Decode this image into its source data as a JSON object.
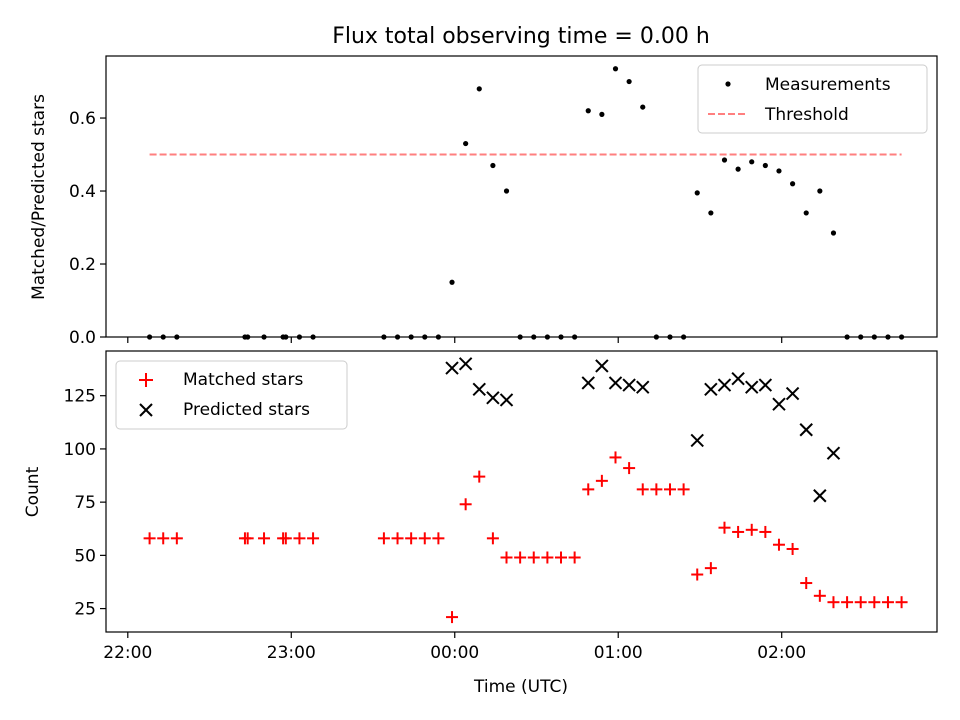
{
  "chart_data": [
    {
      "type": "scatter",
      "title": "Flux total observing time = 0.00 h",
      "xlabel": "",
      "ylabel": "Matched/Predicted stars",
      "xlim": [
        "21:52",
        "02:57"
      ],
      "ylim": [
        0,
        0.77
      ],
      "yticks": [
        0.0,
        0.2,
        0.4,
        0.6
      ],
      "ytick_labels": [
        "0.0",
        "0.2",
        "0.4",
        "0.6"
      ],
      "legend_position": "top-right",
      "series": [
        {
          "name": "Measurements",
          "marker": "dot",
          "color": "#000000",
          "points": [
            [
              "22:08",
              0
            ],
            [
              "22:13",
              0
            ],
            [
              "22:18",
              0
            ],
            [
              "22:43",
              0
            ],
            [
              "22:44",
              0
            ],
            [
              "22:50",
              0
            ],
            [
              "22:57",
              0
            ],
            [
              "22:58",
              0
            ],
            [
              "23:03",
              0
            ],
            [
              "23:08",
              0
            ],
            [
              "23:34",
              0
            ],
            [
              "23:39",
              0
            ],
            [
              "23:44",
              0
            ],
            [
              "23:49",
              0
            ],
            [
              "23:54",
              0
            ],
            [
              "23:59",
              0.15
            ],
            [
              "00:04",
              0.53
            ],
            [
              "00:09",
              0.68
            ],
            [
              "00:14",
              0.47
            ],
            [
              "00:19",
              0.4
            ],
            [
              "00:24",
              0
            ],
            [
              "00:29",
              0
            ],
            [
              "00:34",
              0
            ],
            [
              "00:39",
              0
            ],
            [
              "00:44",
              0
            ],
            [
              "00:49",
              0.62
            ],
            [
              "00:54",
              0.61
            ],
            [
              "00:59",
              0.735
            ],
            [
              "01:04",
              0.7
            ],
            [
              "01:09",
              0.63
            ],
            [
              "01:14",
              0
            ],
            [
              "01:19",
              0
            ],
            [
              "01:24",
              0
            ],
            [
              "01:29",
              0.395
            ],
            [
              "01:34",
              0.34
            ],
            [
              "01:39",
              0.485
            ],
            [
              "01:44",
              0.46
            ],
            [
              "01:49",
              0.48
            ],
            [
              "01:54",
              0.47
            ],
            [
              "01:59",
              0.455
            ],
            [
              "02:04",
              0.42
            ],
            [
              "02:09",
              0.34
            ],
            [
              "02:14",
              0.4
            ],
            [
              "02:19",
              0.285
            ],
            [
              "02:24",
              0
            ],
            [
              "02:29",
              0
            ],
            [
              "02:34",
              0
            ],
            [
              "02:39",
              0
            ],
            [
              "02:44",
              0
            ]
          ]
        },
        {
          "name": "Threshold",
          "type": "line",
          "style": "dashed",
          "color": "#ff7f7f",
          "points": [
            [
              "22:08",
              0.5
            ],
            [
              "02:44",
              0.5
            ]
          ]
        }
      ]
    },
    {
      "type": "scatter",
      "title": "",
      "xlabel": "Time (UTC)",
      "ylabel": "Count",
      "xlim": [
        "21:52",
        "02:57"
      ],
      "ylim": [
        14,
        146
      ],
      "yticks": [
        25,
        50,
        75,
        100,
        125
      ],
      "ytick_labels": [
        "25",
        "50",
        "75",
        "100",
        "125"
      ],
      "xticks": [
        "22:00",
        "23:00",
        "00:00",
        "01:00",
        "02:00"
      ],
      "xtick_labels": [
        "22:00",
        "23:00",
        "00:00",
        "01:00",
        "02:00"
      ],
      "legend_position": "top-left",
      "series": [
        {
          "name": "Matched stars",
          "marker": "plus",
          "color": "#ff0000",
          "points": [
            [
              "22:08",
              58
            ],
            [
              "22:13",
              58
            ],
            [
              "22:18",
              58
            ],
            [
              "22:43",
              58
            ],
            [
              "22:44",
              58
            ],
            [
              "22:50",
              58
            ],
            [
              "22:57",
              58
            ],
            [
              "22:58",
              58
            ],
            [
              "23:03",
              58
            ],
            [
              "23:08",
              58
            ],
            [
              "23:34",
              58
            ],
            [
              "23:39",
              58
            ],
            [
              "23:44",
              58
            ],
            [
              "23:49",
              58
            ],
            [
              "23:54",
              58
            ],
            [
              "23:59",
              21
            ],
            [
              "00:04",
              74
            ],
            [
              "00:09",
              87
            ],
            [
              "00:14",
              58
            ],
            [
              "00:19",
              49
            ],
            [
              "00:24",
              49
            ],
            [
              "00:29",
              49
            ],
            [
              "00:34",
              49
            ],
            [
              "00:39",
              49
            ],
            [
              "00:44",
              49
            ],
            [
              "00:49",
              81
            ],
            [
              "00:54",
              85
            ],
            [
              "00:59",
              96
            ],
            [
              "01:04",
              91
            ],
            [
              "01:09",
              81
            ],
            [
              "01:14",
              81
            ],
            [
              "01:19",
              81
            ],
            [
              "01:24",
              81
            ],
            [
              "01:29",
              41
            ],
            [
              "01:34",
              44
            ],
            [
              "01:39",
              63
            ],
            [
              "01:44",
              61
            ],
            [
              "01:49",
              62
            ],
            [
              "01:54",
              61
            ],
            [
              "01:59",
              55
            ],
            [
              "02:04",
              53
            ],
            [
              "02:09",
              37
            ],
            [
              "02:14",
              31
            ],
            [
              "02:19",
              28
            ],
            [
              "02:24",
              28
            ],
            [
              "02:29",
              28
            ],
            [
              "02:34",
              28
            ],
            [
              "02:39",
              28
            ],
            [
              "02:44",
              28
            ]
          ]
        },
        {
          "name": "Predicted stars",
          "marker": "x",
          "color": "#000000",
          "points": [
            [
              "23:59",
              138
            ],
            [
              "00:04",
              140
            ],
            [
              "00:09",
              128
            ],
            [
              "00:14",
              124
            ],
            [
              "00:19",
              123
            ],
            [
              "00:49",
              131
            ],
            [
              "00:54",
              139
            ],
            [
              "00:59",
              131
            ],
            [
              "01:04",
              130
            ],
            [
              "01:09",
              129
            ],
            [
              "01:29",
              104
            ],
            [
              "01:34",
              128
            ],
            [
              "01:39",
              130
            ],
            [
              "01:44",
              133
            ],
            [
              "01:49",
              129
            ],
            [
              "01:54",
              130
            ],
            [
              "01:59",
              121
            ],
            [
              "02:04",
              126
            ],
            [
              "02:09",
              109
            ],
            [
              "02:14",
              78
            ],
            [
              "02:19",
              98
            ]
          ]
        }
      ]
    }
  ]
}
